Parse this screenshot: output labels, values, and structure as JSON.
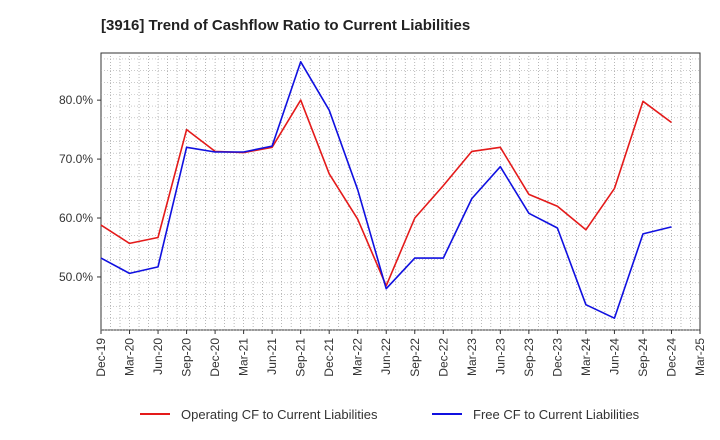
{
  "chart_data": {
    "type": "line",
    "title": "[3916]  Trend of Cashflow Ratio to Current Liabilities",
    "xlabel": "",
    "ylabel": "",
    "x_ticks": [
      "Dec-19",
      "Mar-20",
      "Jun-20",
      "Sep-20",
      "Dec-20",
      "Mar-21",
      "Jun-21",
      "Sep-21",
      "Dec-21",
      "Mar-22",
      "Jun-22",
      "Sep-22",
      "Dec-22",
      "Mar-23",
      "Jun-23",
      "Sep-23",
      "Dec-23",
      "Mar-24",
      "Jun-24",
      "Sep-24",
      "Dec-24",
      "Mar-25"
    ],
    "y_ticks": [
      50.0,
      60.0,
      70.0,
      80.0
    ],
    "y_tick_labels": [
      "50.0%",
      "60.0%",
      "70.0%",
      "80.0%"
    ],
    "ylim": [
      41.0,
      88.0
    ],
    "grid": true,
    "legend_position": "bottom",
    "series": [
      {
        "name": "Operating CF to Current Liabilities",
        "color": "#e41a1a",
        "x": [
          "Dec-19",
          "Mar-20",
          "Jun-20",
          "Sep-20",
          "Dec-20",
          "Mar-21",
          "Jun-21",
          "Sep-21",
          "Dec-21",
          "Mar-22",
          "Jun-22",
          "Sep-22",
          "Dec-22",
          "Mar-23",
          "Jun-23",
          "Sep-23",
          "Dec-23",
          "Mar-24",
          "Jun-24",
          "Sep-24",
          "Dec-24"
        ],
        "values": [
          58.8,
          55.7,
          56.7,
          75.0,
          71.3,
          71.1,
          72.0,
          80.0,
          67.5,
          59.8,
          48.5,
          60.0,
          65.5,
          71.3,
          72.0,
          64.0,
          62.0,
          58.0,
          65.0,
          79.8,
          76.2
        ]
      },
      {
        "name": "Free CF to Current Liabilities",
        "color": "#1010e0",
        "x": [
          "Dec-19",
          "Mar-20",
          "Jun-20",
          "Sep-20",
          "Dec-20",
          "Mar-21",
          "Jun-21",
          "Sep-21",
          "Dec-21",
          "Mar-22",
          "Jun-22",
          "Sep-22",
          "Dec-22",
          "Mar-23",
          "Jun-23",
          "Sep-23",
          "Dec-23",
          "Mar-24",
          "Jun-24",
          "Sep-24",
          "Dec-24"
        ],
        "values": [
          53.2,
          50.6,
          51.7,
          72.0,
          71.2,
          71.2,
          72.2,
          86.5,
          78.3,
          64.8,
          48.0,
          53.2,
          53.2,
          63.3,
          68.7,
          60.8,
          58.3,
          45.3,
          43.0,
          57.3,
          58.5
        ]
      }
    ]
  }
}
